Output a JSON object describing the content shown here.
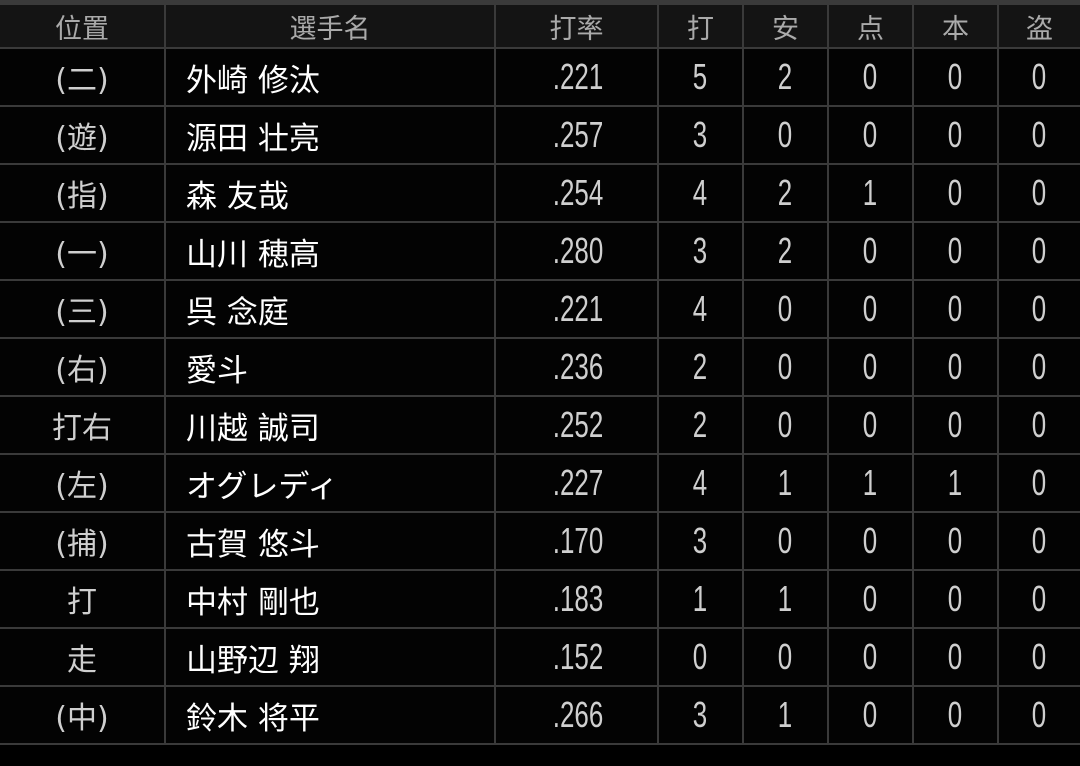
{
  "headers": [
    "位置",
    "選手名",
    "打率",
    "打",
    "安",
    "点",
    "本",
    "盗"
  ],
  "rows": [
    {
      "pos": "(二)",
      "name": "外崎 修汰",
      "avg": ".221",
      "ab": "5",
      "h": "2",
      "rbi": "0",
      "hr": "0",
      "sb": "0"
    },
    {
      "pos": "(遊)",
      "name": "源田 壮亮",
      "avg": ".257",
      "ab": "3",
      "h": "0",
      "rbi": "0",
      "hr": "0",
      "sb": "0"
    },
    {
      "pos": "(指)",
      "name": "森 友哉",
      "avg": ".254",
      "ab": "4",
      "h": "2",
      "rbi": "1",
      "hr": "0",
      "sb": "0"
    },
    {
      "pos": "(一)",
      "name": "山川 穂高",
      "avg": ".280",
      "ab": "3",
      "h": "2",
      "rbi": "0",
      "hr": "0",
      "sb": "0"
    },
    {
      "pos": "(三)",
      "name": "呉 念庭",
      "avg": ".221",
      "ab": "4",
      "h": "0",
      "rbi": "0",
      "hr": "0",
      "sb": "0"
    },
    {
      "pos": "(右)",
      "name": "愛斗",
      "avg": ".236",
      "ab": "2",
      "h": "0",
      "rbi": "0",
      "hr": "0",
      "sb": "0"
    },
    {
      "pos": "打右",
      "name": "川越 誠司",
      "avg": ".252",
      "ab": "2",
      "h": "0",
      "rbi": "0",
      "hr": "0",
      "sb": "0"
    },
    {
      "pos": "(左)",
      "name": "オグレディ",
      "avg": ".227",
      "ab": "4",
      "h": "1",
      "rbi": "1",
      "hr": "1",
      "sb": "0"
    },
    {
      "pos": "(捕)",
      "name": "古賀 悠斗",
      "avg": ".170",
      "ab": "3",
      "h": "0",
      "rbi": "0",
      "hr": "0",
      "sb": "0"
    },
    {
      "pos": "打",
      "name": "中村 剛也",
      "avg": ".183",
      "ab": "1",
      "h": "1",
      "rbi": "0",
      "hr": "0",
      "sb": "0"
    },
    {
      "pos": "走",
      "name": "山野辺 翔",
      "avg": ".152",
      "ab": "0",
      "h": "0",
      "rbi": "0",
      "hr": "0",
      "sb": "0"
    },
    {
      "pos": "(中)",
      "name": "鈴木 将平",
      "avg": ".266",
      "ab": "3",
      "h": "1",
      "rbi": "0",
      "hr": "0",
      "sb": "0"
    }
  ]
}
